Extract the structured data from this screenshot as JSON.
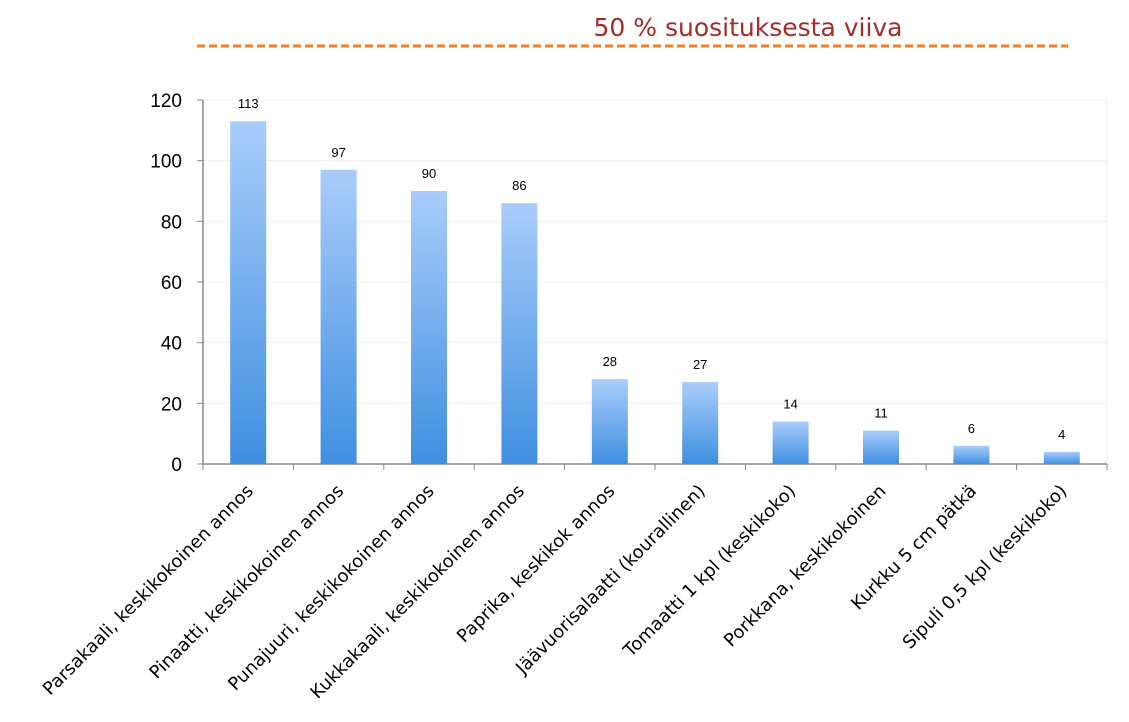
{
  "chart_data": {
    "type": "bar",
    "categories": [
      "Parsakaali, keskikokoinen annos",
      "Pinaatti, keskikokoinen annos",
      "Punajuuri, keskikokoinen annos",
      "Kukkakaali, keskikokoinen annos",
      "Paprika, keskikok annos",
      "Jäävuorisalaatti (kourallinen)",
      "Tomaatti 1 kpl (keskikoko)",
      "Porkkana, keskikokoinen",
      "Kurkku 5 cm pätkä",
      "Sipuli 0,5 kpl (keskikoko)"
    ],
    "values": [
      113,
      97,
      90,
      86,
      28,
      27,
      14,
      11,
      6,
      4
    ],
    "data_labels": [
      "113",
      "97",
      "90",
      "86",
      "28",
      "27",
      "14",
      "11",
      "6",
      "4"
    ],
    "ylim": [
      0,
      120
    ],
    "yticks": [
      "0",
      "20",
      "40",
      "60",
      "80",
      "100",
      "120"
    ],
    "grid": true,
    "bar_color_top": "#a9cdfb",
    "bar_color_bottom": "#3f8fe0",
    "reference_line": {
      "label": "50 % suosituksesta viiva",
      "color": "#f07e26",
      "label_color": "#a52a2a",
      "style": "dashed"
    }
  }
}
